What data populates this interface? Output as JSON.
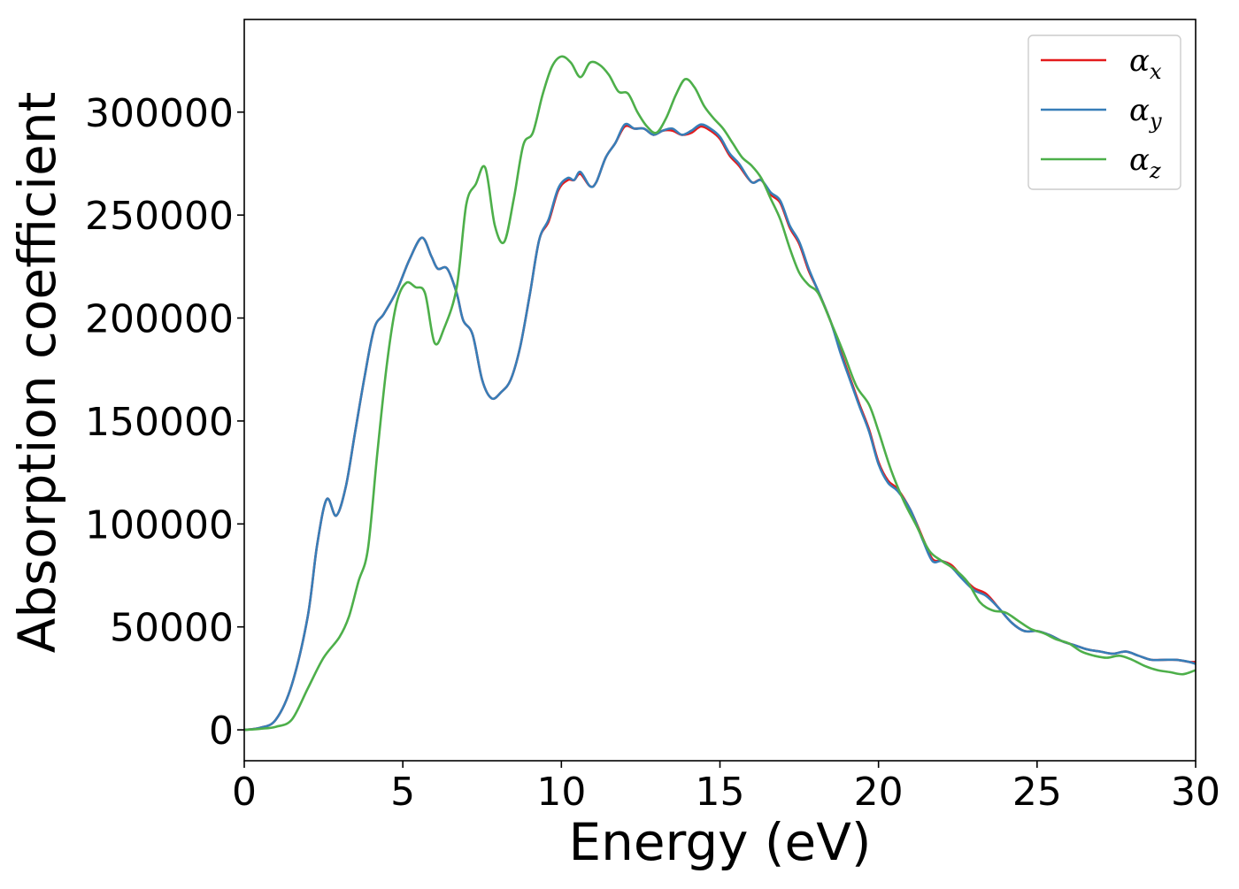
{
  "chart_data": {
    "type": "line",
    "xlabel": "Energy (eV)",
    "ylabel": "Absorption coefficient",
    "xlim": [
      0,
      30
    ],
    "ylim": [
      -15000,
      345000
    ],
    "xticks": [
      0,
      5,
      10,
      15,
      20,
      25,
      30
    ],
    "yticks": [
      0,
      50000,
      100000,
      150000,
      200000,
      250000,
      300000
    ],
    "grid": false,
    "legend_position": "top-right",
    "series": [
      {
        "name": "αx",
        "symbol": "α",
        "subscript": "x",
        "color": "#e41a1c",
        "x": [
          0,
          0.5,
          1.0,
          1.5,
          2.0,
          2.3,
          2.6,
          2.9,
          3.2,
          3.5,
          3.8,
          4.1,
          4.4,
          4.8,
          5.2,
          5.6,
          5.9,
          6.1,
          6.4,
          6.7,
          6.9,
          7.2,
          7.5,
          7.8,
          8.1,
          8.4,
          8.7,
          9.0,
          9.3,
          9.6,
          9.9,
          10.2,
          10.4,
          10.6,
          10.9,
          11.1,
          11.4,
          11.7,
          12.0,
          12.3,
          12.6,
          12.9,
          13.2,
          13.5,
          13.8,
          14.1,
          14.4,
          14.7,
          15.0,
          15.3,
          15.6,
          16.0,
          16.3,
          16.6,
          16.9,
          17.2,
          17.5,
          17.8,
          18.1,
          18.5,
          18.8,
          19.1,
          19.4,
          19.7,
          20.0,
          20.3,
          20.6,
          21.0,
          21.4,
          21.7,
          22.0,
          22.3,
          22.6,
          23.0,
          23.4,
          23.8,
          24.2,
          24.6,
          25.0,
          25.4,
          25.8,
          26.2,
          26.6,
          27.0,
          27.4,
          27.8,
          28.2,
          28.6,
          29.0,
          29.4,
          29.8,
          30.0
        ],
        "values": [
          0,
          1000,
          5000,
          22000,
          55000,
          90000,
          112000,
          104000,
          118000,
          145000,
          172000,
          195000,
          202000,
          213000,
          228000,
          239000,
          230000,
          224000,
          224000,
          212000,
          199000,
          192000,
          170000,
          161000,
          164000,
          170000,
          186000,
          211000,
          238000,
          247000,
          262000,
          267000,
          267000,
          270000,
          264000,
          266000,
          278000,
          285000,
          293000,
          292000,
          292000,
          289000,
          291000,
          291000,
          289000,
          290000,
          293000,
          291000,
          287000,
          279000,
          274000,
          266000,
          267000,
          260000,
          256000,
          244000,
          236000,
          223000,
          213000,
          198000,
          184000,
          171000,
          158000,
          146000,
          130000,
          121000,
          117000,
          107000,
          93000,
          83000,
          82000,
          80000,
          75000,
          69000,
          66000,
          59000,
          52000,
          48000,
          48000,
          46000,
          43000,
          41000,
          39000,
          38000,
          37000,
          38000,
          36000,
          34000,
          34000,
          34000,
          33000,
          33000
        ]
      },
      {
        "name": "αy",
        "symbol": "α",
        "subscript": "y",
        "color": "#377eb8",
        "x": [
          0,
          0.5,
          1.0,
          1.5,
          2.0,
          2.3,
          2.6,
          2.9,
          3.2,
          3.5,
          3.8,
          4.1,
          4.4,
          4.8,
          5.2,
          5.6,
          5.9,
          6.1,
          6.4,
          6.7,
          6.9,
          7.2,
          7.5,
          7.8,
          8.1,
          8.4,
          8.7,
          9.0,
          9.3,
          9.6,
          9.9,
          10.2,
          10.4,
          10.6,
          10.9,
          11.1,
          11.4,
          11.7,
          12.0,
          12.3,
          12.6,
          12.9,
          13.2,
          13.5,
          13.8,
          14.1,
          14.4,
          14.7,
          15.0,
          15.3,
          15.6,
          16.0,
          16.3,
          16.6,
          16.9,
          17.2,
          17.5,
          17.8,
          18.1,
          18.5,
          18.8,
          19.1,
          19.4,
          19.7,
          20.0,
          20.3,
          20.6,
          21.0,
          21.4,
          21.7,
          22.0,
          22.3,
          22.6,
          23.0,
          23.4,
          23.8,
          24.2,
          24.6,
          25.0,
          25.4,
          25.8,
          26.2,
          26.6,
          27.0,
          27.4,
          27.8,
          28.2,
          28.6,
          29.0,
          29.4,
          29.8,
          30.0
        ],
        "values": [
          0,
          1000,
          5000,
          22000,
          55000,
          90000,
          112000,
          104000,
          118000,
          145000,
          172000,
          195000,
          202000,
          213000,
          228000,
          239000,
          230000,
          224000,
          224000,
          212000,
          199000,
          192000,
          170000,
          161000,
          164000,
          170000,
          186000,
          211000,
          238000,
          248000,
          263000,
          268000,
          267000,
          271000,
          264000,
          266000,
          278000,
          285000,
          294000,
          292000,
          292000,
          289000,
          291000,
          292000,
          289000,
          291000,
          294000,
          292000,
          288000,
          280000,
          275000,
          266000,
          267000,
          261000,
          257000,
          245000,
          237000,
          224000,
          213000,
          198000,
          183000,
          170000,
          157000,
          145000,
          129000,
          120000,
          116000,
          107000,
          92000,
          82000,
          82000,
          79000,
          74000,
          68000,
          65000,
          59000,
          52000,
          48000,
          48000,
          46000,
          43000,
          41000,
          39000,
          38000,
          37000,
          38000,
          36000,
          34000,
          34000,
          34000,
          33000,
          32000
        ]
      },
      {
        "name": "αz",
        "symbol": "α",
        "subscript": "z",
        "color": "#4daf4a",
        "x": [
          0,
          0.5,
          1.0,
          1.5,
          2.0,
          2.5,
          3.0,
          3.3,
          3.6,
          3.9,
          4.2,
          4.5,
          4.8,
          5.1,
          5.4,
          5.7,
          6.0,
          6.3,
          6.7,
          7.0,
          7.3,
          7.6,
          7.9,
          8.2,
          8.5,
          8.8,
          9.1,
          9.4,
          9.7,
          10.0,
          10.3,
          10.6,
          10.9,
          11.2,
          11.5,
          11.8,
          12.1,
          12.4,
          12.7,
          13.0,
          13.3,
          13.6,
          13.9,
          14.2,
          14.5,
          14.8,
          15.1,
          15.4,
          15.7,
          16.0,
          16.3,
          16.6,
          16.9,
          17.2,
          17.5,
          17.8,
          18.1,
          18.5,
          18.9,
          19.3,
          19.7,
          20.0,
          20.4,
          20.8,
          21.2,
          21.6,
          22.0,
          22.4,
          22.8,
          23.2,
          23.6,
          24.0,
          24.4,
          24.8,
          25.2,
          25.6,
          26.0,
          26.4,
          26.8,
          27.2,
          27.6,
          28.0,
          28.4,
          28.8,
          29.2,
          29.6,
          30.0
        ],
        "values": [
          0,
          500,
          1500,
          5000,
          20000,
          35000,
          45000,
          55000,
          72000,
          88000,
          135000,
          178000,
          207000,
          217000,
          215000,
          212000,
          188000,
          195000,
          215000,
          255000,
          265000,
          273000,
          245000,
          237000,
          258000,
          284000,
          290000,
          308000,
          322000,
          327000,
          324000,
          317000,
          324000,
          323000,
          318000,
          310000,
          309000,
          300000,
          293000,
          290000,
          297000,
          308000,
          316000,
          312000,
          303000,
          297000,
          292000,
          285000,
          278000,
          274000,
          268000,
          258000,
          248000,
          234000,
          222000,
          216000,
          212000,
          198000,
          183000,
          167000,
          158000,
          145000,
          126000,
          111000,
          99000,
          87000,
          82000,
          78000,
          72000,
          62000,
          58000,
          57000,
          53000,
          49000,
          47000,
          44000,
          42000,
          38000,
          36000,
          35000,
          36000,
          34000,
          31000,
          29000,
          28000,
          27000,
          29000
        ]
      }
    ]
  }
}
